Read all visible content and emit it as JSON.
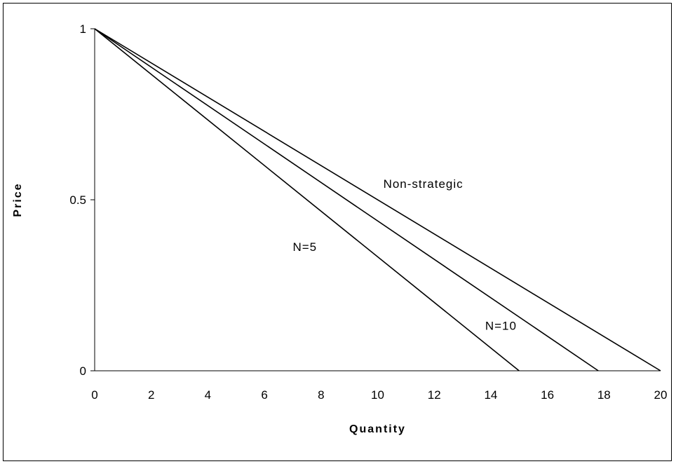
{
  "chart_data": {
    "type": "line",
    "xlabel": "Quantity",
    "ylabel": "Price",
    "xlim": [
      0,
      20
    ],
    "ylim": [
      0,
      1
    ],
    "xticks": [
      "0",
      "2",
      "4",
      "6",
      "8",
      "10",
      "12",
      "14",
      "16",
      "18",
      "20"
    ],
    "yticks": [
      "0",
      "0.5",
      "1"
    ],
    "grid": false,
    "legend": "none",
    "series": [
      {
        "name": "Non-strategic",
        "points": [
          [
            0,
            1
          ],
          [
            20,
            0
          ]
        ]
      },
      {
        "name": "N=10",
        "points": [
          [
            0,
            1
          ],
          [
            17.8,
            0
          ]
        ]
      },
      {
        "name": "N=5",
        "points": [
          [
            0,
            1
          ],
          [
            15,
            0
          ]
        ]
      }
    ],
    "line_color": "#000000"
  }
}
